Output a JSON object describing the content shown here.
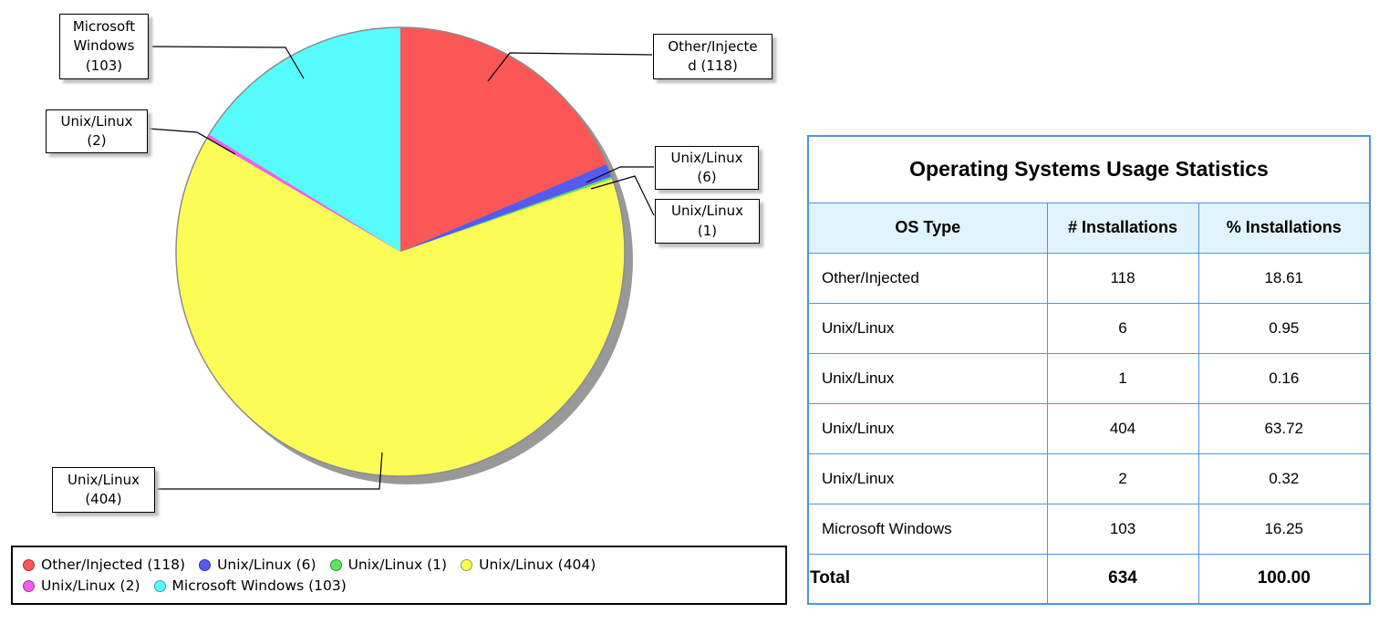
{
  "page": {
    "background": "#FFFFFF"
  },
  "chart_data": {
    "type": "pie",
    "title": "",
    "start_angle_deg": 0,
    "direction": "clockwise",
    "total": 634,
    "slices": [
      {
        "label": "Other/Injected",
        "value": 118,
        "pct": 18.61,
        "color": "#FC5757",
        "legend_label": "Other/Injected (118)"
      },
      {
        "label": "Unix/Linux",
        "value": 6,
        "pct": 0.95,
        "color": "#555AF0",
        "legend_label": "Unix/Linux (6)"
      },
      {
        "label": "Unix/Linux",
        "value": 1,
        "pct": 0.16,
        "color": "#5CE65C",
        "legend_label": "Unix/Linux (1)"
      },
      {
        "label": "Unix/Linux",
        "value": 404,
        "pct": 63.72,
        "color": "#FCFC57",
        "legend_label": "Unix/Linux (404)"
      },
      {
        "label": "Unix/Linux",
        "value": 2,
        "pct": 0.32,
        "color": "#F55CEE",
        "legend_label": "Unix/Linux (2)"
      },
      {
        "label": "Microsoft Windows",
        "value": 103,
        "pct": 16.25,
        "color": "#57FCFC",
        "legend_label": "Microsoft Windows (103)"
      }
    ],
    "legend": {
      "position": "bottom-left",
      "rows": [
        [
          0,
          1,
          2,
          3
        ],
        [
          4,
          5
        ]
      ]
    },
    "shadow_color": "#999999",
    "outline_color": "#8C8C8C"
  },
  "callouts": [
    {
      "target": "Microsoft Windows (103)",
      "lines": [
        "Microsoft",
        "Windows",
        "(103)"
      ]
    },
    {
      "target": "Unix/Linux (2)",
      "lines": [
        "Unix/Linux",
        "(2)"
      ]
    },
    {
      "target": "Other/Injected (118)",
      "lines": [
        "Other/Injecte",
        "d (118)"
      ]
    },
    {
      "target": "Unix/Linux (6)",
      "lines": [
        "Unix/Linux",
        "(6)"
      ]
    },
    {
      "target": "Unix/Linux (1)",
      "lines": [
        "Unix/Linux",
        "(1)"
      ]
    },
    {
      "target": "Unix/Linux (404)",
      "lines": [
        "Unix/Linux",
        "(404)"
      ]
    }
  ],
  "stats_table": {
    "title": "Operating Systems Usage Statistics",
    "columns": [
      "OS Type",
      "# Installations",
      "% Installations"
    ],
    "rows": [
      [
        "Other/Injected",
        "118",
        "18.61"
      ],
      [
        "Unix/Linux",
        "6",
        "0.95"
      ],
      [
        "Unix/Linux",
        "1",
        "0.16"
      ],
      [
        "Unix/Linux",
        "404",
        "63.72"
      ],
      [
        "Unix/Linux",
        "2",
        "0.32"
      ],
      [
        "Microsoft Windows",
        "103",
        "16.25"
      ]
    ],
    "total_row": [
      "Total",
      "634",
      "100.00"
    ],
    "border_color": "#4E95E5",
    "header_bg": "#E1F3FC"
  }
}
